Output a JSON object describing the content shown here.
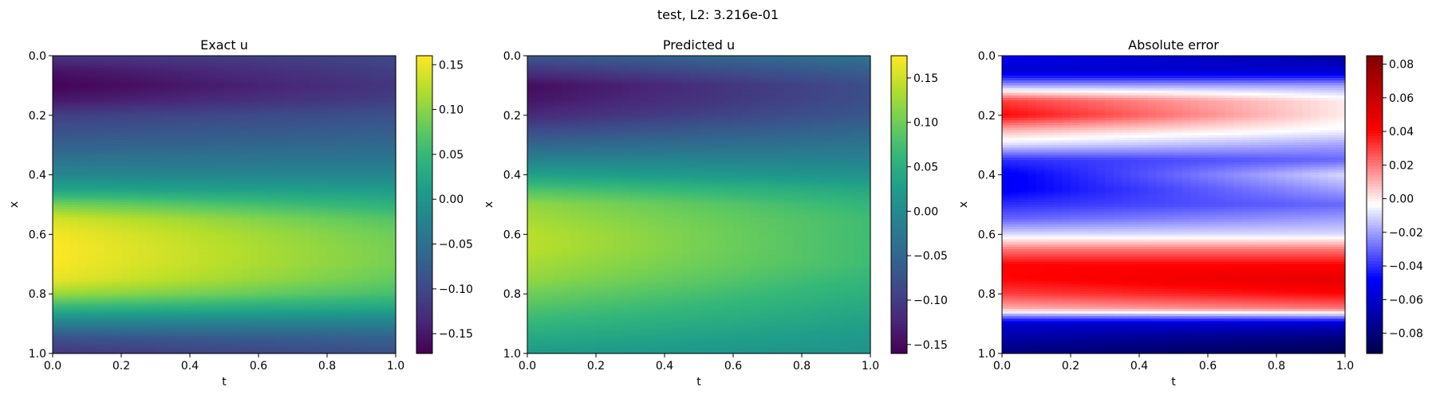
{
  "figure": {
    "suptitle": "test, L2: 3.216e-01"
  },
  "chart_data": [
    {
      "type": "heatmap",
      "title": "Exact u",
      "xlabel": "t",
      "ylabel": "x",
      "xlim": [
        0.0,
        1.0
      ],
      "ylim": [
        1.0,
        0.0
      ],
      "x_ticks": [
        "0.0",
        "0.2",
        "0.4",
        "0.6",
        "0.8",
        "1.0"
      ],
      "y_ticks": [
        "0.0",
        "0.2",
        "0.4",
        "0.6",
        "0.8",
        "1.0"
      ],
      "colormap": "viridis",
      "colorbar": {
        "vmin": -0.172,
        "vmax": 0.16,
        "ticks": [
          0.15,
          0.1,
          0.05,
          0.0,
          -0.05,
          -0.1,
          -0.15
        ],
        "tick_labels": [
          "0.15",
          "0.10",
          "0.05",
          "0.00",
          "−0.05",
          "−0.10",
          "−0.15"
        ]
      },
      "field_profile": {
        "x": [
          0.0,
          0.05,
          0.1,
          0.15,
          0.2,
          0.3,
          0.4,
          0.45,
          0.5,
          0.55,
          0.6,
          0.65,
          0.7,
          0.75,
          0.8,
          0.85,
          0.9,
          0.95,
          1.0
        ],
        "u_at_t0": [
          -0.12,
          -0.155,
          -0.17,
          -0.15,
          -0.11,
          -0.07,
          -0.02,
          0.02,
          0.09,
          0.14,
          0.155,
          0.16,
          0.158,
          0.15,
          0.11,
          0.04,
          -0.03,
          -0.09,
          -0.12
        ],
        "u_at_t1": [
          -0.1,
          -0.11,
          -0.12,
          -0.11,
          -0.09,
          -0.06,
          -0.02,
          0.01,
          0.04,
          0.07,
          0.085,
          0.09,
          0.09,
          0.08,
          0.06,
          0.02,
          -0.03,
          -0.07,
          -0.09
        ]
      }
    },
    {
      "type": "heatmap",
      "title": "Predicted u",
      "xlabel": "t",
      "ylabel": "x",
      "xlim": [
        0.0,
        1.0
      ],
      "ylim": [
        1.0,
        0.0
      ],
      "x_ticks": [
        "0.0",
        "0.2",
        "0.4",
        "0.6",
        "0.8",
        "1.0"
      ],
      "y_ticks": [
        "0.0",
        "0.2",
        "0.4",
        "0.6",
        "0.8",
        "1.0"
      ],
      "colormap": "viridis",
      "colorbar": {
        "vmin": -0.16,
        "vmax": 0.175,
        "ticks": [
          0.15,
          0.1,
          0.05,
          0.0,
          -0.05,
          -0.1,
          -0.15
        ],
        "tick_labels": [
          "0.15",
          "0.10",
          "0.05",
          "0.00",
          "−0.05",
          "−0.10",
          "−0.15"
        ]
      },
      "field_profile": {
        "x": [
          0.0,
          0.05,
          0.1,
          0.15,
          0.2,
          0.3,
          0.4,
          0.45,
          0.5,
          0.55,
          0.6,
          0.65,
          0.7,
          0.75,
          0.8,
          0.85,
          0.9,
          0.95,
          1.0
        ],
        "u_at_t0": [
          -0.07,
          -0.11,
          -0.15,
          -0.14,
          -0.12,
          -0.05,
          0.03,
          0.08,
          0.12,
          0.13,
          0.14,
          0.14,
          0.13,
          0.12,
          0.1,
          0.08,
          0.06,
          0.04,
          0.02
        ],
        "u_at_t1": [
          -0.03,
          -0.06,
          -0.08,
          -0.08,
          -0.07,
          -0.03,
          0.01,
          0.04,
          0.06,
          0.07,
          0.07,
          0.07,
          0.07,
          0.06,
          0.05,
          0.04,
          0.03,
          0.02,
          0.01
        ]
      }
    },
    {
      "type": "heatmap",
      "title": "Absolute error",
      "xlabel": "t",
      "ylabel": "x",
      "xlim": [
        0.0,
        1.0
      ],
      "ylim": [
        1.0,
        0.0
      ],
      "x_ticks": [
        "0.0",
        "0.2",
        "0.4",
        "0.6",
        "0.8",
        "1.0"
      ],
      "y_ticks": [
        "0.0",
        "0.2",
        "0.4",
        "0.6",
        "0.8",
        "1.0"
      ],
      "colormap": "seismic",
      "colorbar": {
        "vmin": -0.092,
        "vmax": 0.085,
        "ticks": [
          0.08,
          0.06,
          0.04,
          0.02,
          0.0,
          -0.02,
          -0.04,
          -0.06,
          -0.08
        ],
        "tick_labels": [
          "0.08",
          "0.06",
          "0.04",
          "0.02",
          "0.00",
          "−0.02",
          "−0.04",
          "−0.06",
          "−0.08"
        ]
      },
      "field_profile": {
        "x": [
          0.0,
          0.05,
          0.1,
          0.15,
          0.2,
          0.25,
          0.3,
          0.35,
          0.4,
          0.45,
          0.5,
          0.55,
          0.6,
          0.65,
          0.7,
          0.75,
          0.8,
          0.85,
          0.9,
          0.95,
          1.0
        ],
        "u_at_t0": [
          -0.05,
          -0.06,
          -0.02,
          0.03,
          0.04,
          0.01,
          -0.01,
          -0.04,
          -0.05,
          -0.05,
          -0.04,
          -0.03,
          -0.01,
          0.02,
          0.04,
          0.04,
          0.03,
          0.01,
          -0.06,
          -0.07,
          -0.08
        ],
        "u_at_t1": [
          -0.07,
          -0.06,
          -0.02,
          0.0,
          0.0,
          -0.005,
          -0.02,
          -0.03,
          -0.01,
          -0.02,
          -0.03,
          -0.02,
          -0.01,
          0.02,
          0.04,
          0.05,
          0.04,
          0.02,
          -0.06,
          -0.08,
          -0.09
        ]
      }
    }
  ]
}
